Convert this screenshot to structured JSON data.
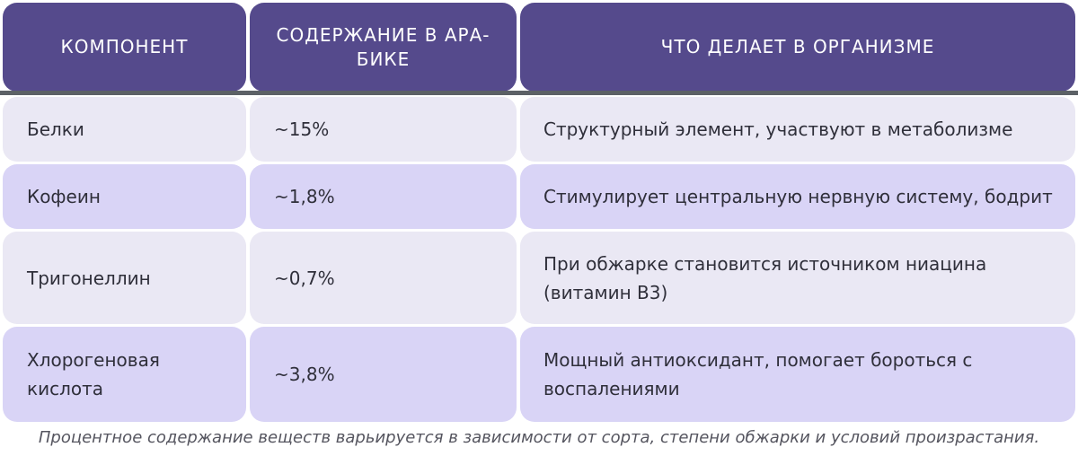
{
  "table": {
    "headers": [
      "КОМПОНЕНТ",
      "СОДЕРЖАНИЕ В АРА-БИКЕ",
      "ЧТО ДЕЛАЕТ В ОРГАНИЗМЕ"
    ],
    "header_lines": {
      "col2_line1": "СОДЕРЖАНИЕ В АРА-",
      "col2_line2": "БИКЕ"
    },
    "rows": [
      {
        "component": "Белки",
        "content": "~15%",
        "effect": "Структурный элемент, участвуют в метаболизме"
      },
      {
        "component": "Кофеин",
        "content": "~1,8%",
        "effect": "Стимулирует центральную нервную систему, бодрит"
      },
      {
        "component": "Тригонеллин",
        "content": "~0,7%",
        "effect": "При обжарке становится источником ниацина (витамин В3)"
      },
      {
        "component": "Хлорогеновая кислота",
        "content": "~3,8%",
        "effect": "Мощный антиоксидант, помогает бороться с воспалениями"
      }
    ]
  },
  "caption": "Процентное содержание веществ варьируется в зависимости от сорта, степени обжарки и условий произрастания.",
  "colors": {
    "header_bg": "#554a8c",
    "header_text": "#ffffff",
    "row_light": "#eae8f4",
    "row_dark": "#d9d4f6",
    "body_text": "#2f2f3a",
    "rule": "#5c6166"
  }
}
